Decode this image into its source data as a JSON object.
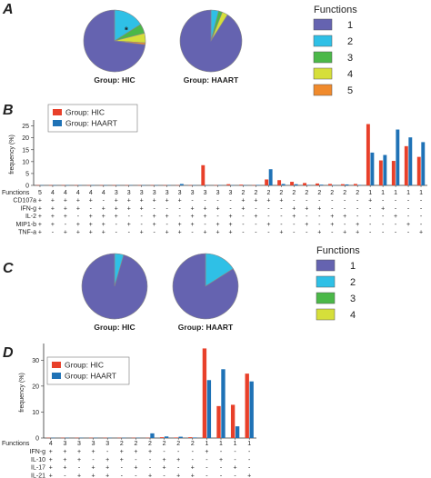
{
  "colors": {
    "c1": "#6563b0",
    "c2": "#2fc0e6",
    "c3": "#4bb848",
    "c4": "#d6df3a",
    "c5": "#f08a2c",
    "hic": "#e8402a",
    "haart": "#1f72b6",
    "axis": "#333333"
  },
  "chart_data": [
    {
      "panel": "A",
      "type": "pie",
      "legend_title": "Functions",
      "legend": [
        "1",
        "2",
        "3",
        "4",
        "5"
      ],
      "pies": [
        {
          "label": "Group: HIC",
          "values": [
            73,
            16,
            5,
            5,
            1
          ],
          "marker": "*"
        },
        {
          "label": "Group: HAART",
          "values": [
            91,
            4,
            2,
            3,
            0
          ]
        }
      ]
    },
    {
      "panel": "B",
      "type": "bar",
      "ylabel": "frequency (%)",
      "ylim": [
        0,
        26
      ],
      "yticks": [
        0,
        5,
        10,
        15,
        20,
        25
      ],
      "series": [
        {
          "name": "Group: HIC",
          "values": [
            0.1,
            0.1,
            0.1,
            0.1,
            0.1,
            0.1,
            0.1,
            0.1,
            0.1,
            0.1,
            0.1,
            0.1,
            0.1,
            8.5,
            0.1,
            0.5,
            0.3,
            0.1,
            2.5,
            2.2,
            1.5,
            1.0,
            0.8,
            0.6,
            0.5,
            0.6,
            25.8,
            10.5,
            10.3,
            16.5,
            12.0
          ]
        },
        {
          "name": "Group: HAART",
          "values": [
            0.1,
            0.1,
            0.1,
            0.1,
            0.1,
            0.1,
            0.1,
            0.1,
            0.1,
            0.1,
            0.1,
            0.6,
            0.1,
            0.1,
            0.1,
            0.1,
            0.1,
            0.2,
            6.8,
            0.6,
            0.5,
            0.2,
            0.3,
            0.1,
            0.4,
            0.2,
            13.8,
            12.8,
            23.5,
            20.2,
            18.2
          ]
        }
      ],
      "row_labels": [
        "Functions",
        "CD107a",
        "IFN-g",
        "IL-2",
        "MIP1-b",
        "TNF-a"
      ],
      "rows": [
        [
          "5",
          "4",
          "4",
          "4",
          "4",
          "4",
          "3",
          "3",
          "3",
          "3",
          "3",
          "3",
          "3",
          "3",
          "3",
          "3",
          "2",
          "2",
          "2",
          "2",
          "2",
          "2",
          "2",
          "2",
          "2",
          "2",
          "1",
          "1",
          "1",
          "1",
          "1"
        ],
        [
          "+",
          "+",
          "+",
          "+",
          "+",
          "-",
          "+",
          "+",
          "+",
          "+",
          "+",
          "+",
          "-",
          "-",
          "-",
          "-",
          "+",
          "+",
          "+",
          "+",
          "-",
          "-",
          "-",
          "-",
          "-",
          "-",
          "+",
          "-",
          "-",
          "-",
          "-"
        ],
        [
          "+",
          "+",
          "+",
          "+",
          "-",
          "+",
          "+",
          "+",
          "+",
          "-",
          "-",
          "-",
          "+",
          "+",
          "+",
          "-",
          "+",
          "-",
          "-",
          "-",
          "+",
          "+",
          "+",
          "-",
          "-",
          "-",
          "-",
          "+",
          "-",
          "-",
          "-"
        ],
        [
          "+",
          "+",
          "+",
          "-",
          "+",
          "+",
          "+",
          "-",
          "-",
          "+",
          "+",
          "-",
          "+",
          "+",
          "-",
          "+",
          "-",
          "+",
          "-",
          "-",
          "+",
          "-",
          "-",
          "+",
          "+",
          "-",
          "-",
          "-",
          "+",
          "-",
          "-"
        ],
        [
          "+",
          "+",
          "-",
          "+",
          "+",
          "+",
          "-",
          "+",
          "-",
          "+",
          "-",
          "+",
          "+",
          "-",
          "+",
          "+",
          "-",
          "-",
          "+",
          "-",
          "-",
          "+",
          "-",
          "+",
          "-",
          "+",
          "-",
          "-",
          "-",
          "+",
          "-"
        ],
        [
          "+",
          "-",
          "+",
          "+",
          "+",
          "+",
          "-",
          "-",
          "+",
          "-",
          "+",
          "+",
          "-",
          "+",
          "+",
          "+",
          "-",
          "-",
          "-",
          "+",
          "-",
          "-",
          "+",
          "-",
          "+",
          "+",
          "-",
          "-",
          "-",
          "-",
          "+"
        ]
      ]
    },
    {
      "panel": "C",
      "type": "pie",
      "legend_title": "Functions",
      "legend": [
        "1",
        "2",
        "3",
        "4"
      ],
      "pies": [
        {
          "label": "Group: HIC",
          "values": [
            95.5,
            4.5,
            0,
            0
          ]
        },
        {
          "label": "Group: HAART",
          "values": [
            84,
            16,
            0,
            0
          ]
        }
      ]
    },
    {
      "panel": "D",
      "type": "bar",
      "ylabel": "frequency (%)",
      "ylim": [
        0,
        35
      ],
      "yticks": [
        0,
        10,
        20,
        30
      ],
      "series": [
        {
          "name": "Group: HIC",
          "values": [
            0.1,
            0.1,
            0.1,
            0.1,
            0.1,
            0.1,
            0.1,
            0.1,
            0.3,
            0.2,
            0.3,
            34.5,
            12.3,
            12.8,
            24.8
          ]
        },
        {
          "name": "Group: HAART",
          "values": [
            0.1,
            0.1,
            0.1,
            0.1,
            0.1,
            0.1,
            0.1,
            1.8,
            0.6,
            0.5,
            0.2,
            22.3,
            26.5,
            4.5,
            21.8
          ]
        }
      ],
      "row_labels": [
        "Functions",
        "IFN-g",
        "IL-10",
        "IL-17",
        "IL-21"
      ],
      "rows": [
        [
          "4",
          "3",
          "3",
          "3",
          "3",
          "2",
          "2",
          "2",
          "2",
          "2",
          "2",
          "1",
          "1",
          "1",
          "1"
        ],
        [
          "+",
          "+",
          "+",
          "+",
          "-",
          "+",
          "+",
          "+",
          "-",
          "-",
          "-",
          "+",
          "-",
          "-",
          "-"
        ],
        [
          "+",
          "+",
          "+",
          "-",
          "+",
          "+",
          "-",
          "-",
          "+",
          "+",
          "-",
          "-",
          "+",
          "-",
          "-"
        ],
        [
          "+",
          "+",
          "-",
          "+",
          "+",
          "-",
          "+",
          "-",
          "+",
          "-",
          "+",
          "-",
          "-",
          "+",
          "-"
        ],
        [
          "+",
          "-",
          "+",
          "+",
          "+",
          "-",
          "-",
          "+",
          "-",
          "+",
          "+",
          "-",
          "-",
          "-",
          "+"
        ]
      ]
    }
  ]
}
